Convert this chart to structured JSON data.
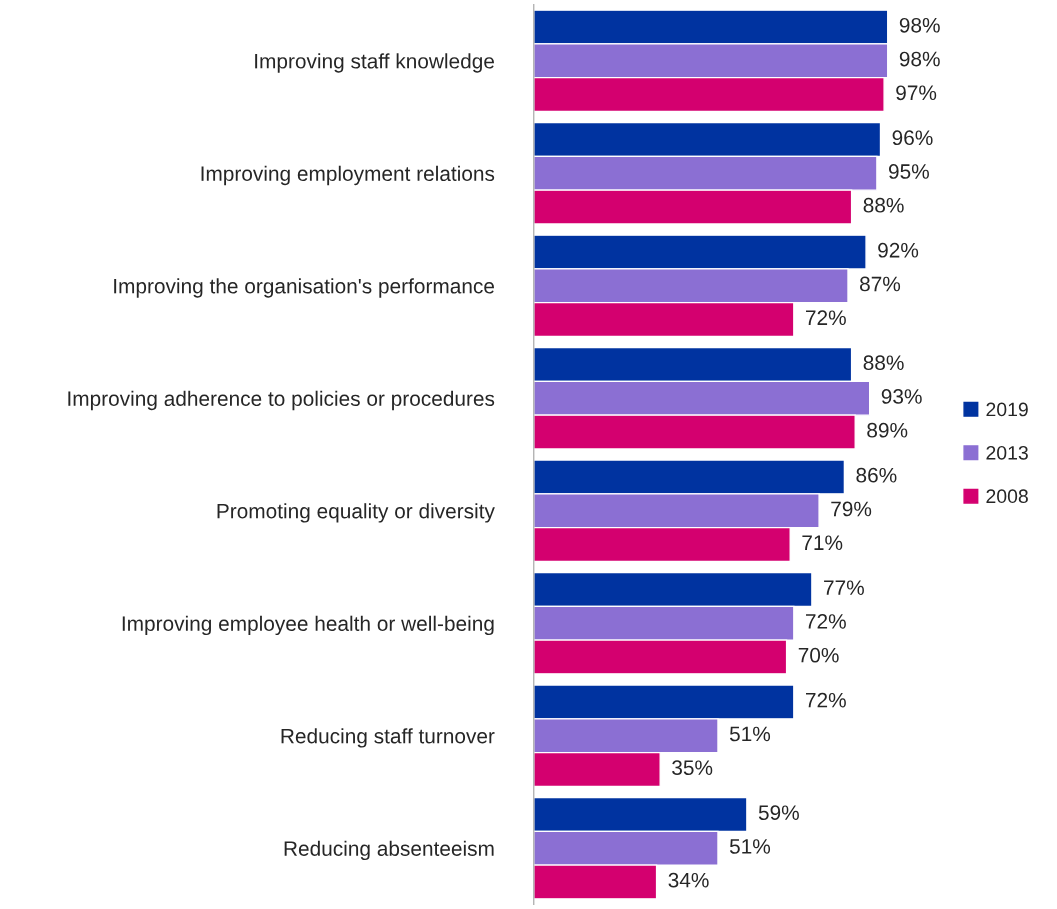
{
  "chart_data": {
    "type": "bar",
    "orientation": "horizontal",
    "legend": "right",
    "grid": false,
    "categories": [
      "Improving staff knowledge",
      "Improving employment relations",
      "Improving the organisation's performance",
      "Improving adherence to policies or procedures",
      "Promoting equality or diversity",
      "Improving employee health or well-being",
      "Reducing staff turnover",
      "Reducing absenteeism"
    ],
    "series": [
      {
        "name": "2019",
        "color": "#0033a0",
        "values": [
          98,
          96,
          92,
          88,
          86,
          77,
          72,
          59
        ],
        "value_labels": [
          "98%",
          "96%",
          "92%",
          "88%",
          "86%",
          "77%",
          "72%",
          "59%"
        ]
      },
      {
        "name": "2013",
        "color": "#8b6fd3",
        "values": [
          98,
          95,
          87,
          93,
          79,
          72,
          51,
          51
        ],
        "value_labels": [
          "98%",
          "95%",
          "87%",
          "93%",
          "79%",
          "72%",
          "51%",
          "51%"
        ]
      },
      {
        "name": "2008",
        "color": "#d4006f",
        "values": [
          97,
          88,
          72,
          89,
          71,
          70,
          35,
          34
        ],
        "value_labels": [
          "97%",
          "88%",
          "72%",
          "89%",
          "71%",
          "70%",
          "35%",
          "34%"
        ]
      }
    ]
  }
}
